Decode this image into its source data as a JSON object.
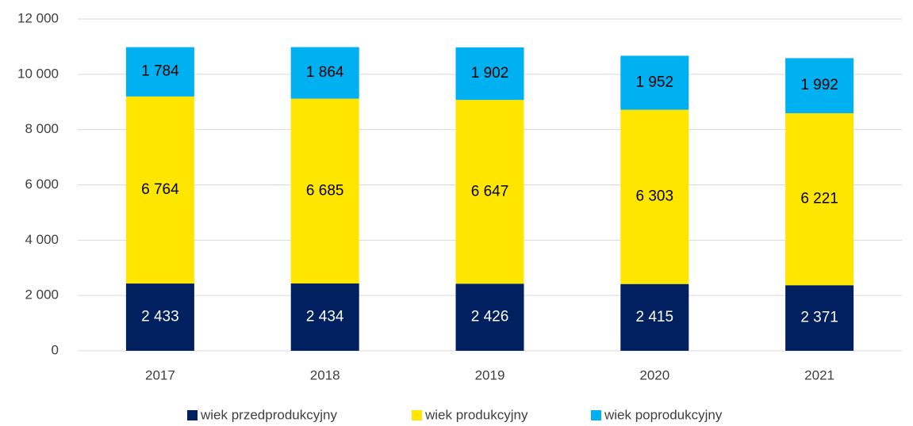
{
  "chart_data": {
    "type": "stacked_bar",
    "categories": [
      "2017",
      "2018",
      "2019",
      "2020",
      "2021"
    ],
    "series": [
      {
        "name": "wiek przedprodukcyjny",
        "color": "#002060",
        "values": [
          2433,
          2434,
          2426,
          2415,
          2371
        ],
        "value_labels": [
          "2 433",
          "2 434",
          "2 426",
          "2 415",
          "2 371"
        ]
      },
      {
        "name": "wiek produkcyjny",
        "color": "#ffe600",
        "values": [
          6764,
          6685,
          6647,
          6303,
          6221
        ],
        "value_labels": [
          "6 764",
          "6 685",
          "6 647",
          "6 303",
          "6 221"
        ]
      },
      {
        "name": "wiek poprodukcyjny",
        "color": "#00b0f0",
        "values": [
          1784,
          1864,
          1902,
          1952,
          1992
        ],
        "value_labels": [
          "1 784",
          "1 864",
          "1 902",
          "1 952",
          "1 992"
        ]
      }
    ],
    "ylim": [
      0,
      12000
    ],
    "yticks": [
      0,
      {
        "value": 2000,
        "label": "2 000"
      },
      {
        "value": 4000,
        "label": "4 000"
      },
      {
        "value": 6000,
        "label": "6 000"
      },
      {
        "value": 8000,
        "label": "8 000"
      },
      {
        "value": 10000,
        "label": "10 000"
      },
      {
        "value": 12000,
        "label": "12 000"
      }
    ],
    "grid": true,
    "legend": "bottom"
  }
}
